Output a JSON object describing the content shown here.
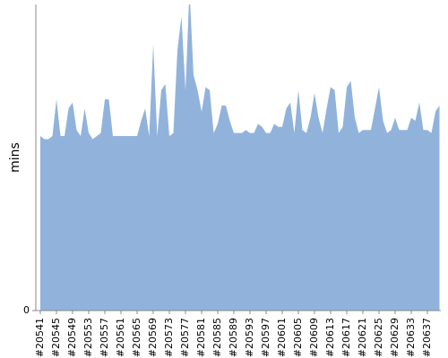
{
  "chart_data": {
    "type": "area",
    "y_label": "mins",
    "color": "#91b3db",
    "categories": [
      "#20541",
      null,
      null,
      null,
      "#20545",
      null,
      null,
      null,
      "#20549",
      null,
      null,
      null,
      "#20553",
      null,
      null,
      null,
      "#20557",
      null,
      null,
      null,
      "#20561",
      null,
      null,
      null,
      "#20565",
      null,
      null,
      null,
      "#20569",
      null,
      null,
      null,
      "#20573",
      null,
      null,
      null,
      "#20577",
      null,
      null,
      null,
      "#20581",
      null,
      null,
      null,
      "#20585",
      null,
      null,
      null,
      "#20589",
      null,
      null,
      null,
      "#20593",
      null,
      null,
      null,
      "#20597",
      null,
      null,
      null,
      "#20601",
      null,
      null,
      null,
      "#20605",
      null,
      null,
      null,
      "#20609",
      null,
      null,
      null,
      "#20613",
      null,
      null,
      null,
      "#20617",
      null,
      null,
      null,
      "#20621",
      null,
      null,
      null,
      "#20625",
      null,
      null,
      null,
      "#20629",
      null,
      null,
      null,
      "#20633",
      null,
      null,
      null,
      "#20637",
      null,
      null,
      null
    ],
    "values": [
      57,
      56,
      56,
      57,
      69,
      57,
      57,
      66,
      68,
      59,
      57,
      66,
      58,
      56,
      57,
      58,
      69,
      69,
      57,
      57,
      57,
      57,
      57,
      57,
      57,
      62,
      66,
      57,
      87,
      57,
      72,
      74,
      57,
      58,
      85,
      96,
      72,
      105,
      77,
      72,
      65,
      73,
      72,
      58,
      61,
      67,
      67,
      62,
      58,
      58,
      58,
      59,
      58,
      58,
      61,
      60,
      58,
      58,
      61,
      60,
      60,
      66,
      68,
      58,
      72,
      59,
      58,
      63,
      71,
      63,
      58,
      66,
      73,
      72,
      58,
      60,
      73,
      75,
      63,
      58,
      59,
      59,
      59,
      66,
      73,
      62,
      58,
      59,
      63,
      59,
      59,
      59,
      63,
      62,
      68,
      59,
      59,
      58,
      65,
      67
    ],
    "ylim": [
      0,
      100
    ],
    "yticks": [
      0
    ]
  }
}
